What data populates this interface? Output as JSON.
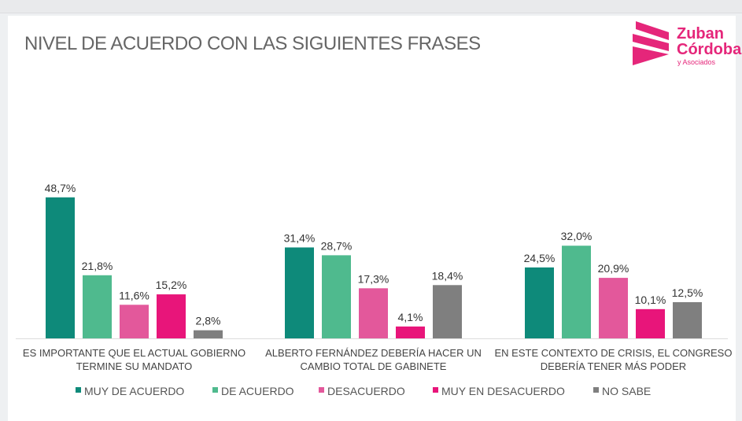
{
  "title": "NIVEL DE ACUERDO CON LAS SIGUIENTES FRASES",
  "logo": {
    "line1": "Zuban",
    "line2": "Córdoba",
    "line3": "y Asociados"
  },
  "chart_data": {
    "type": "bar",
    "title": "NIVEL DE ACUERDO CON LAS SIGUIENTES FRASES",
    "categories": [
      [
        "ES IMPORTANTE QUE EL ACTUAL GOBIERNO",
        "TERMINE SU MANDATO"
      ],
      [
        "ALBERTO FERNÁNDEZ DEBERÍA HACER UN",
        "CAMBIO TOTAL DE GABINETE"
      ],
      [
        "EN ESTE CONTEXTO DE CRISIS, EL CONGRESO",
        "DEBERÍA TENER MÁS PODER"
      ]
    ],
    "series": [
      {
        "name": "MUY DE ACUERDO",
        "color": "#0e8a7a",
        "values": [
          48.7,
          31.4,
          24.5
        ],
        "labels": [
          "48,7%",
          "31,4%",
          "24,5%"
        ]
      },
      {
        "name": "DE ACUERDO",
        "color": "#4fba8e",
        "values": [
          21.8,
          28.7,
          32.0
        ],
        "labels": [
          "21,8%",
          "28,7%",
          "32,0%"
        ]
      },
      {
        "name": "DESACUERDO",
        "color": "#e3589b",
        "values": [
          11.6,
          17.3,
          20.9
        ],
        "labels": [
          "11,6%",
          "17,3%",
          "20,9%"
        ]
      },
      {
        "name": "MUY EN DESACUERDO",
        "color": "#e8157a",
        "values": [
          15.2,
          4.1,
          10.1
        ],
        "labels": [
          "15,2%",
          "4,1%",
          "10,1%"
        ]
      },
      {
        "name": "NO SABE",
        "color": "#7f7f7f",
        "values": [
          2.8,
          18.4,
          12.5
        ],
        "labels": [
          "2,8%",
          "18,4%",
          "12,5%"
        ]
      }
    ],
    "legend": "bottom",
    "grid": false,
    "ylim": [
      0,
      50
    ]
  }
}
